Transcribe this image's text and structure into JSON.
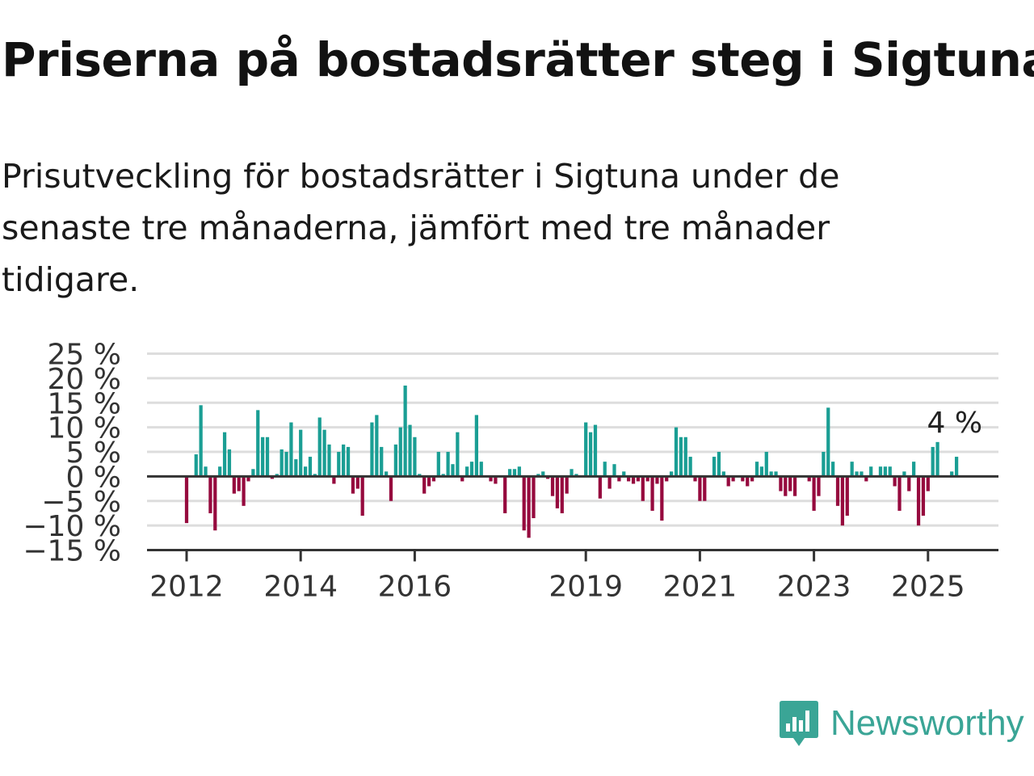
{
  "title": "Priserna på bostadsrätter steg i Sigtuna",
  "subtitle": "Prisutveckling för bostadsrätter i Sigtuna under de senaste tre månaderna, jämfört med tre månader tidigare.",
  "brand": {
    "name": "Newsworthy",
    "icon": "newsworthy-logo-icon"
  },
  "colors": {
    "positive": "#1a9e94",
    "negative": "#960a3e",
    "grid": "#dddddd",
    "axis": "#333333",
    "brand": "#3aa596"
  },
  "chart_data": {
    "type": "bar",
    "x_unit": "month",
    "x_start": "2012-01",
    "x_end": "2025-06",
    "ylim": [
      -15,
      25
    ],
    "yticks": [
      25,
      20,
      15,
      10,
      5,
      0,
      -5,
      -10,
      -15
    ],
    "ytick_labels": [
      "25 %",
      "20 %",
      "15 %",
      "10 %",
      "5 %",
      "0 %",
      "−5 %",
      "−10 %",
      "−15 %"
    ],
    "xticks": [
      2012,
      2014,
      2016,
      2019,
      2021,
      2023,
      2025
    ],
    "xtick_labels": [
      "2012",
      "2014",
      "2016",
      "2019",
      "2021",
      "2023",
      "2025"
    ],
    "grid": true,
    "annotation": {
      "text": "4 %",
      "target": "last-bar"
    },
    "values": [
      -9.5,
      0,
      4.5,
      14.5,
      2,
      -7.5,
      -11,
      2,
      9,
      5.5,
      -3.5,
      -3,
      -6,
      -1,
      1.5,
      13.5,
      8,
      8,
      -0.5,
      0.5,
      5.5,
      5,
      11,
      3.5,
      9.5,
      2,
      4,
      0.5,
      12,
      9.5,
      6.5,
      -1.5,
      5,
      6.5,
      6,
      -3.5,
      -2.5,
      -8,
      0,
      11,
      12.5,
      6,
      1,
      -5,
      6.5,
      10,
      18.5,
      10.5,
      8,
      0.5,
      -3.5,
      -2,
      -1,
      5,
      0.5,
      5,
      2.5,
      9,
      -1,
      2,
      3,
      12.5,
      3,
      0,
      -1,
      -1.5,
      0,
      -7.5,
      1.5,
      1.5,
      2,
      -11,
      -12.5,
      -8.5,
      0.5,
      1,
      -0.5,
      -4,
      -6.5,
      -7.5,
      -3.5,
      1.5,
      0.5,
      0,
      11,
      9,
      10.5,
      -4.5,
      3,
      -2.5,
      2.5,
      -1,
      1,
      -1,
      -1.5,
      -1,
      -5,
      -1,
      -7,
      -1.5,
      -9,
      -1,
      1,
      10,
      8,
      8,
      4,
      -1,
      -5,
      -5,
      0,
      4,
      5,
      1,
      -2,
      -1,
      0,
      -1,
      -2,
      -1,
      3,
      2,
      5,
      1,
      1,
      -3,
      -4,
      -3,
      -4,
      0,
      0,
      -1,
      -7,
      -4,
      5,
      14,
      3,
      -6,
      -10,
      -8,
      3,
      1,
      1,
      -1,
      2,
      0,
      2,
      2,
      2,
      -2,
      -7,
      1,
      -3,
      3,
      -10,
      -8,
      -3,
      6,
      7,
      0,
      0,
      1,
      4
    ]
  }
}
